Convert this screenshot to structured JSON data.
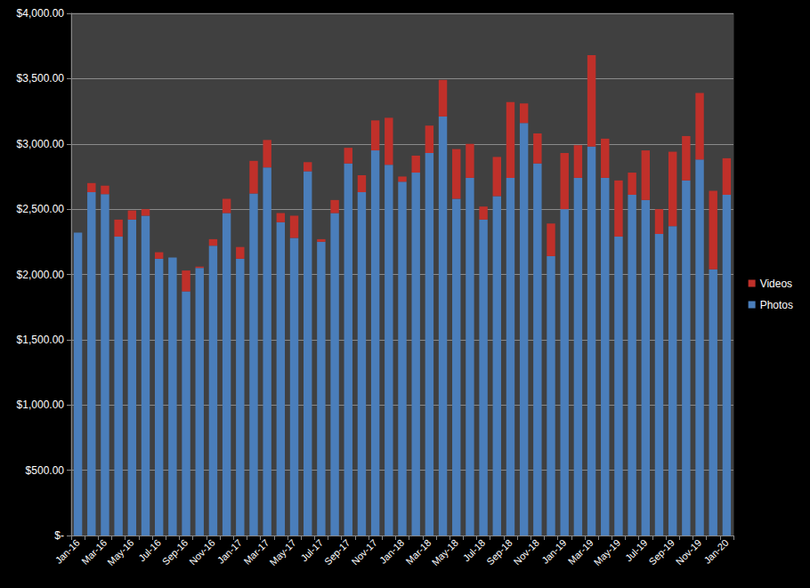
{
  "chart_data": {
    "type": "bar",
    "stacked": true,
    "grid": true,
    "legend": "right",
    "categories": [
      "Jan-16",
      null,
      "Mar-16",
      null,
      "May-16",
      null,
      "Jul-16",
      null,
      "Sep-16",
      null,
      "Nov-16",
      null,
      "Jan-17",
      null,
      "Mar-17",
      null,
      "May-17",
      null,
      "Jul-17",
      null,
      "Sep-17",
      null,
      "Nov-17",
      null,
      "Jan-18",
      null,
      "Mar-18",
      null,
      "May-18",
      null,
      "Jul-18",
      null,
      "Sep-18",
      null,
      "Nov-18",
      null,
      "Jan-19",
      null,
      "Mar-19",
      null,
      "May-19",
      null,
      "Jul-19",
      null,
      "Sep-19",
      null,
      "Nov-19",
      null,
      "Jan-20"
    ],
    "series": [
      {
        "name": "Photos",
        "color": "#4a7ebb",
        "values": [
          2320,
          2630,
          2615,
          2290,
          2420,
          2450,
          2120,
          2130,
          1870,
          2050,
          2220,
          2470,
          2120,
          2620,
          2820,
          2400,
          2280,
          2790,
          2250,
          2470,
          2850,
          2630,
          2950,
          2840,
          2710,
          2780,
          2930,
          3210,
          2580,
          2740,
          2420,
          2600,
          2740,
          3160,
          2850,
          2140,
          2500,
          2740,
          2980,
          2740,
          2290,
          2610,
          2570,
          2310,
          2370,
          2720,
          2880,
          2040,
          2610
        ]
      },
      {
        "name": "Videos",
        "color": "#c0302a",
        "values": [
          0,
          70,
          65,
          130,
          70,
          50,
          50,
          0,
          160,
          10,
          50,
          110,
          90,
          250,
          210,
          70,
          170,
          70,
          20,
          100,
          120,
          130,
          230,
          360,
          40,
          130,
          210,
          280,
          380,
          260,
          100,
          300,
          580,
          150,
          230,
          250,
          430,
          250,
          700,
          300,
          430,
          170,
          380,
          190,
          570,
          340,
          510,
          600,
          280
        ]
      }
    ],
    "ylim": [
      0,
      4000
    ],
    "yticks": [
      {
        "value": 0,
        "label": "$-"
      },
      {
        "value": 500,
        "label": "$500.00"
      },
      {
        "value": 1000,
        "label": "$1,000.00"
      },
      {
        "value": 1500,
        "label": "$1,500.00"
      },
      {
        "value": 2000,
        "label": "$2,000.00"
      },
      {
        "value": 2500,
        "label": "$2,500.00"
      },
      {
        "value": 3000,
        "label": "$3,000.00"
      },
      {
        "value": 3500,
        "label": "$3,500.00"
      },
      {
        "value": 4000,
        "label": "$4,000.00"
      }
    ]
  }
}
